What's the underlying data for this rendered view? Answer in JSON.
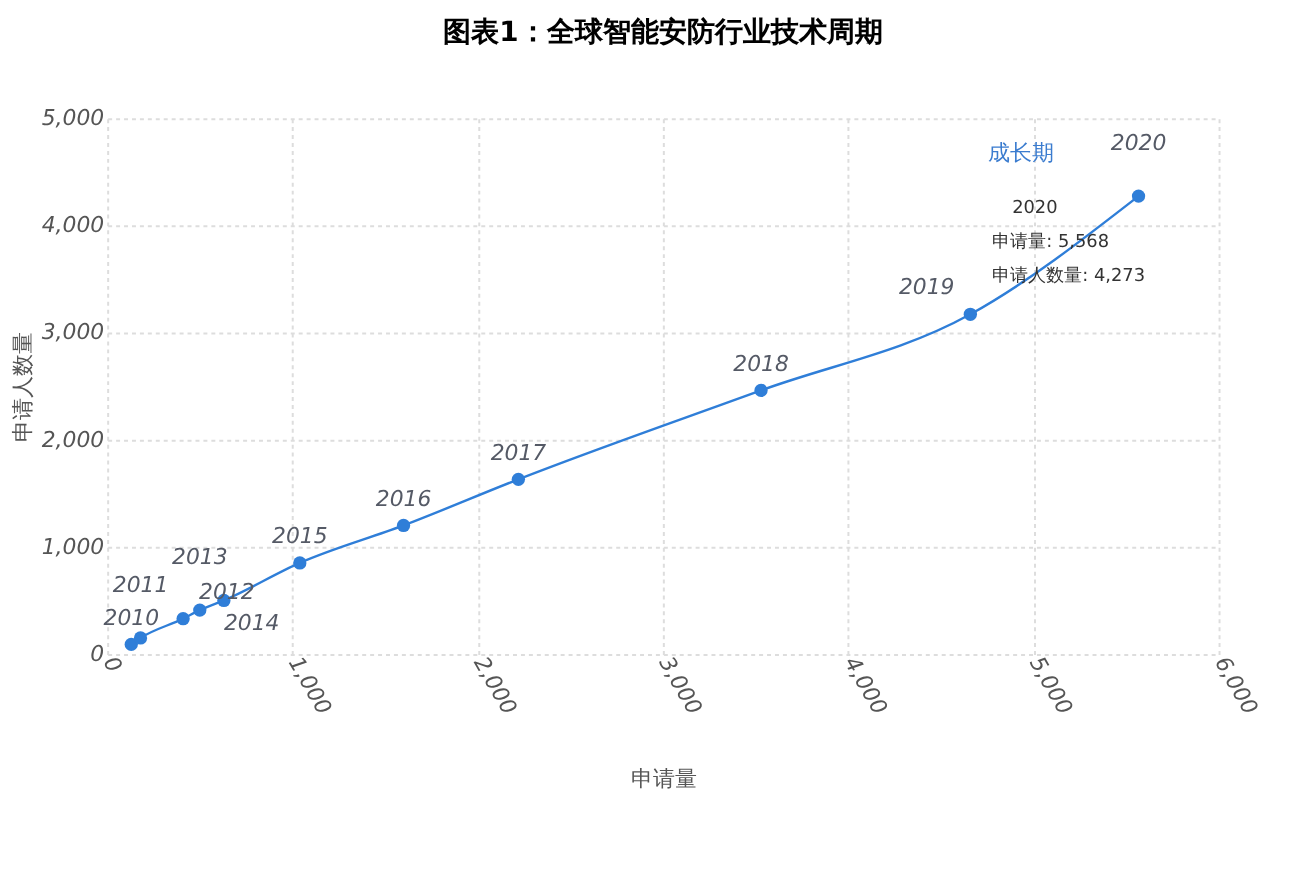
{
  "chart_data": {
    "type": "line",
    "title": "图表1：全球智能安防行业技术周期",
    "xlabel": "申请量",
    "ylabel": "申请人数量",
    "x": [
      130,
      180,
      410,
      500,
      630,
      1040,
      1600,
      2220,
      3530,
      4660,
      5568
    ],
    "series": [
      {
        "color": "#2f7ed8",
        "values": [
          90,
          150,
          330,
          410,
          500,
          850,
          1200,
          1630,
          2460,
          3170,
          4273
        ]
      }
    ],
    "annotations": [
      "成长期",
      "2020",
      "申请量: 5,568",
      "申请人数量: 4,273",
      {
        "text": "2010",
        "x": 130,
        "y": 90
      },
      {
        "text": "2011",
        "x": 180,
        "y": 150
      },
      {
        "text": "2012",
        "x": 410,
        "y": 330
      },
      {
        "text": "2013",
        "x": 500,
        "y": 410
      },
      {
        "text": "2014",
        "x": 630,
        "y": 500
      },
      {
        "text": "2015",
        "x": 1040,
        "y": 850
      },
      {
        "text": "2016",
        "x": 1600,
        "y": 1200
      },
      {
        "text": "2017",
        "x": 2220,
        "y": 1630
      },
      {
        "text": "2018",
        "x": 3530,
        "y": 2460
      },
      {
        "text": "2019",
        "x": 4660,
        "y": 3170
      },
      {
        "text": "2020",
        "x": 5568,
        "y": 4273
      }
    ],
    "xlim": [
      0,
      6000
    ],
    "xticks": [
      {
        "value": 0,
        "label": "0"
      },
      {
        "value": 1000,
        "label": "1,000"
      },
      {
        "value": 2000,
        "label": "2,000"
      },
      {
        "value": 3000,
        "label": "3,000"
      },
      {
        "value": 4000,
        "label": "4,000"
      },
      {
        "value": 5000,
        "label": "5,000"
      },
      {
        "value": 6000,
        "label": "6,000"
      }
    ],
    "ylim": [
      0,
      5000
    ],
    "yticks": [
      {
        "value": 0,
        "label": "0"
      },
      {
        "value": 1000,
        "label": "1,000"
      },
      {
        "value": 2000,
        "label": "2,000"
      },
      {
        "value": 3000,
        "label": "3,000"
      },
      {
        "value": 4000,
        "label": "4,000"
      },
      {
        "value": 5000,
        "label": "5,000"
      }
    ],
    "grid": true,
    "marker": "circle",
    "line_style": "solid"
  }
}
